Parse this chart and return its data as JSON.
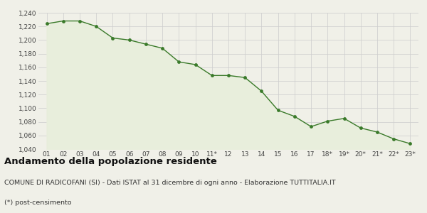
{
  "x_labels": [
    "01",
    "02",
    "03",
    "04",
    "05",
    "06",
    "07",
    "08",
    "09",
    "10",
    "11*",
    "12",
    "13",
    "14",
    "15",
    "16",
    "17",
    "18*",
    "19*",
    "20*",
    "21*",
    "22*",
    "23*"
  ],
  "y_values": [
    1224,
    1228,
    1228,
    1220,
    1203,
    1200,
    1194,
    1188,
    1168,
    1164,
    1148,
    1148,
    1145,
    1125,
    1097,
    1088,
    1073,
    1081,
    1085,
    1071,
    1065,
    1055,
    1048
  ],
  "ylim": [
    1040,
    1240
  ],
  "yticks": [
    1040,
    1060,
    1080,
    1100,
    1120,
    1140,
    1160,
    1180,
    1200,
    1220,
    1240
  ],
  "line_color": "#3a7a2a",
  "fill_color": "#e8eedc",
  "marker_color": "#3a7a2a",
  "bg_color": "#f0f0e8",
  "title": "Andamento della popolazione residente",
  "subtitle": "COMUNE DI RADICOFANI (SI) - Dati ISTAT al 31 dicembre di ogni anno - Elaborazione TUTTITALIA.IT",
  "footnote": "(*) post-censimento",
  "title_fontsize": 9.5,
  "subtitle_fontsize": 6.8,
  "footnote_fontsize": 6.8
}
